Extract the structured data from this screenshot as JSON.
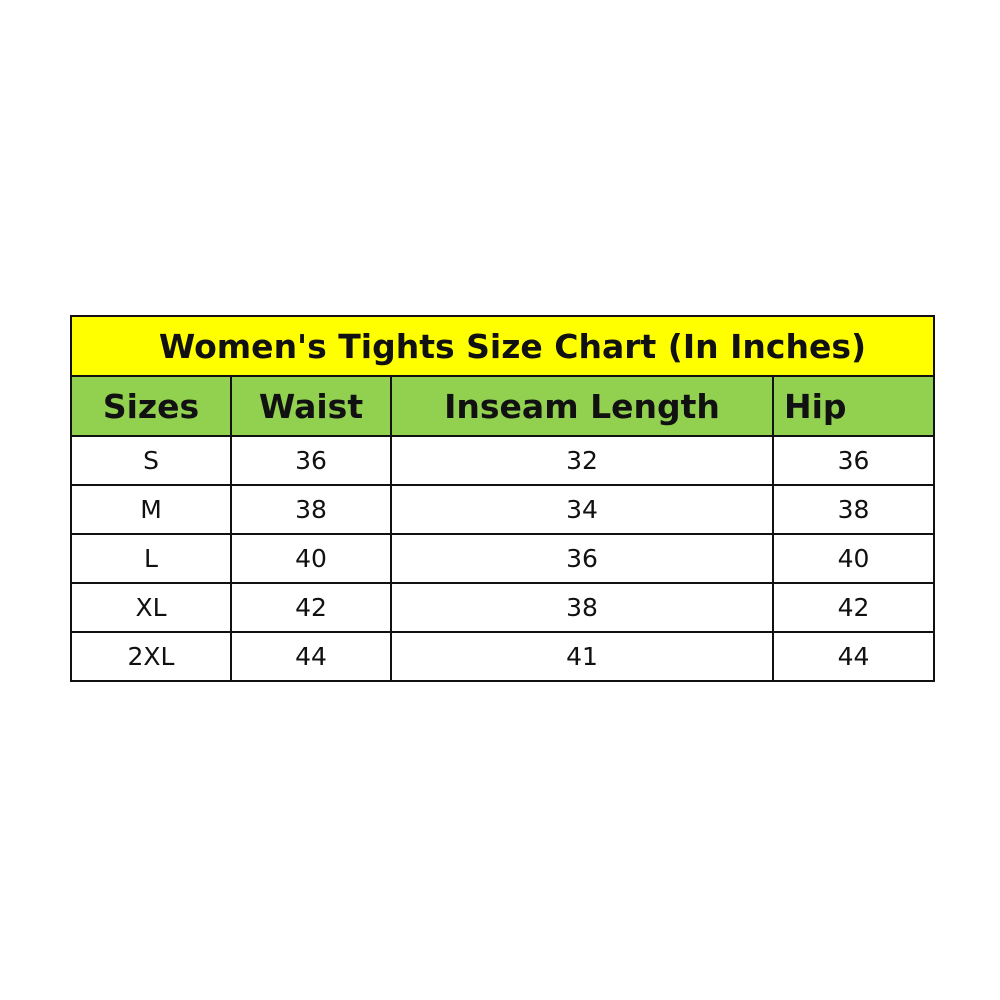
{
  "title": "Women's Tights Size Chart (In Inches)",
  "colors": {
    "title_bg": "#ffff00",
    "header_bg": "#92d050"
  },
  "columns": [
    "Sizes",
    "Waist",
    "Inseam Length",
    "Hip"
  ],
  "rows": [
    [
      "S",
      "36",
      "32",
      "36"
    ],
    [
      "M",
      "38",
      "34",
      "38"
    ],
    [
      "L",
      "40",
      "36",
      "40"
    ],
    [
      "XL",
      "42",
      "38",
      "42"
    ],
    [
      "2XL",
      "44",
      "41",
      "44"
    ]
  ]
}
